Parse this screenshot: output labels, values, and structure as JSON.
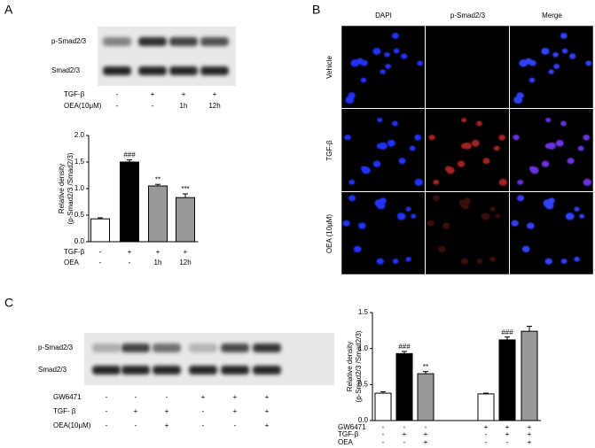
{
  "panels": [
    "A",
    "B",
    "C"
  ],
  "blot_a": {
    "rows": [
      "p-Smad2/3",
      "Smad2/3"
    ],
    "conditions": [
      {
        "label": "TGF-β",
        "marks": [
          "-",
          "+",
          "+",
          "+"
        ]
      },
      {
        "label": "OEA(10μM)",
        "marks": [
          "-",
          "-",
          "1h",
          "12h"
        ]
      }
    ]
  },
  "micro_b": {
    "columns": [
      "DAPI",
      "p-Smad2/3",
      "Merge"
    ],
    "rows": [
      "Vehicle",
      "TGF-β",
      "OEA (10μM)"
    ]
  },
  "blot_c": {
    "rows": [
      "p-Smad2/3",
      "Smad2/3"
    ],
    "conditions": [
      {
        "label": "GW6471",
        "marks": [
          "-",
          "-",
          "-",
          "+",
          "+",
          "+"
        ]
      },
      {
        "label": "TGF- β",
        "marks": [
          "-",
          "+",
          "+",
          "-",
          "+",
          "+"
        ]
      },
      {
        "label": "OEA(10μM)",
        "marks": [
          "-",
          "-",
          "+",
          "-",
          "-",
          "+"
        ]
      }
    ]
  },
  "chart_data": [
    {
      "type": "bar",
      "ylabel": [
        "Relative density",
        "(p-Smad2/3 /Smad2/3)"
      ],
      "values": [
        0.43,
        1.5,
        1.05,
        0.83
      ],
      "errors": [
        0.02,
        0.04,
        0.03,
        0.07
      ],
      "colors": [
        "#ffffff",
        "#000000",
        "#999999",
        "#999999"
      ],
      "annotations": [
        null,
        "###",
        "**",
        "***"
      ],
      "ylim": [
        0,
        2
      ],
      "yticks": [
        {
          "value": 0,
          "label": "0.0"
        },
        {
          "value": 0.5,
          "label": "0.5"
        },
        {
          "value": 1,
          "label": "1.0"
        },
        {
          "value": 1.5,
          "label": "1.5"
        },
        {
          "value": 2,
          "label": "2.0"
        }
      ],
      "conditions": [
        {
          "label": "TGF-β",
          "marks": [
            "-",
            "+",
            "+",
            "+"
          ]
        },
        {
          "label": "OEA",
          "marks": [
            "-",
            "-",
            "1h",
            "12h"
          ]
        }
      ]
    },
    {
      "type": "bar",
      "ylabel": [
        "Relative density",
        "(p-Smad2/3 /Smad2/3)"
      ],
      "values": [
        0.38,
        0.93,
        0.65,
        0.37,
        1.12,
        1.24
      ],
      "errors": [
        0.02,
        0.03,
        0.03,
        0.01,
        0.04,
        0.07
      ],
      "colors": [
        "#ffffff",
        "#000000",
        "#999999",
        "#ffffff",
        "#000000",
        "#999999"
      ],
      "annotations": [
        null,
        "###",
        "**",
        null,
        "###",
        null
      ],
      "ylim": [
        0,
        1.5
      ],
      "yticks": [
        {
          "value": 0,
          "label": "0.0"
        },
        {
          "value": 0.5,
          "label": "0.5"
        },
        {
          "value": 1,
          "label": "1.0"
        },
        {
          "value": 1.5,
          "label": "1.5"
        }
      ],
      "conditions": [
        {
          "label": "GW6471",
          "marks": [
            "-",
            "-",
            "-",
            "+",
            "+",
            "+"
          ]
        },
        {
          "label": "TGF-β",
          "marks": [
            "-",
            "+",
            "+",
            "-",
            "+",
            "+"
          ]
        },
        {
          "label": "OEA",
          "marks": [
            "-",
            "-",
            "+",
            "-",
            "-",
            "+"
          ]
        }
      ]
    }
  ]
}
